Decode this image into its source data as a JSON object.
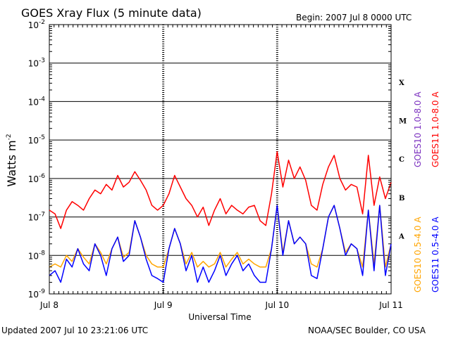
{
  "header": {
    "title": "GOES Xray Flux (5 minute data)",
    "begin": "Begin:  2007 Jul 8 0000 UTC"
  },
  "footer": {
    "updated": "Updated 2007 Jul 10 23:21:06 UTC",
    "credit": "NOAA/SEC Boulder, CO USA"
  },
  "colors": {
    "goes10_long": "#7a2fbf",
    "goes11_long": "#ff0000",
    "goes10_short": "#ffa500",
    "goes11_short": "#0000ff"
  },
  "chart_data": {
    "type": "line",
    "title": "GOES Xray Flux (5 minute data)",
    "xlabel": "Universal Time",
    "ylabel": "Watts m",
    "ylabel_exponent": "-2",
    "y_scale": "log",
    "ylim": [
      1e-09,
      0.01
    ],
    "xlim": [
      0,
      3
    ],
    "x_ticks": [
      {
        "value": 0,
        "label": "Jul 8"
      },
      {
        "value": 1,
        "label": "Jul 9"
      },
      {
        "value": 2,
        "label": "Jul 10"
      },
      {
        "value": 3,
        "label": "Jul 11"
      }
    ],
    "y_ticks": [
      {
        "value": 0.01,
        "base": "10",
        "exp": "-2"
      },
      {
        "value": 0.001,
        "base": "10",
        "exp": "-3"
      },
      {
        "value": 0.0001,
        "base": "10",
        "exp": "-4"
      },
      {
        "value": 1e-05,
        "base": "10",
        "exp": "-5"
      },
      {
        "value": 1e-06,
        "base": "10",
        "exp": "-6"
      },
      {
        "value": 1e-07,
        "base": "10",
        "exp": "-7"
      },
      {
        "value": 1e-08,
        "base": "10",
        "exp": "-8"
      },
      {
        "value": 1e-09,
        "base": "10",
        "exp": "-9"
      }
    ],
    "flare_classes": [
      {
        "label": "X",
        "value": 0.00032
      },
      {
        "label": "M",
        "value": 3.2e-05
      },
      {
        "label": "C",
        "value": 3.2e-06
      },
      {
        "label": "B",
        "value": 3.2e-07
      },
      {
        "label": "A",
        "value": 3.2e-08
      }
    ],
    "legend": [
      {
        "name": "GOES10 0.5-4.0 A",
        "color": "#ffa500"
      },
      {
        "name": "GOES10 1.0-8.0 A",
        "color": "#7a2fbf"
      },
      {
        "name": "GOES11 0.5-4.0 A",
        "color": "#0000ff"
      },
      {
        "name": "GOES11 1.0-8.0 A",
        "color": "#ff0000"
      }
    ],
    "series": [
      {
        "name": "GOES11 1.0-8.0 A",
        "color": "#ff0000",
        "x": [
          0.0,
          0.05,
          0.1,
          0.15,
          0.2,
          0.25,
          0.3,
          0.35,
          0.4,
          0.45,
          0.5,
          0.55,
          0.6,
          0.65,
          0.7,
          0.75,
          0.8,
          0.85,
          0.9,
          0.95,
          1.0,
          1.05,
          1.1,
          1.15,
          1.2,
          1.25,
          1.3,
          1.35,
          1.4,
          1.45,
          1.5,
          1.55,
          1.6,
          1.65,
          1.7,
          1.75,
          1.8,
          1.85,
          1.9,
          1.95,
          2.0,
          2.05,
          2.1,
          2.15,
          2.2,
          2.25,
          2.3,
          2.35,
          2.4,
          2.45,
          2.5,
          2.55,
          2.6,
          2.65,
          2.7,
          2.75,
          2.8,
          2.85,
          2.9,
          2.95,
          3.0
        ],
        "values": [
          1.5e-07,
          1.2e-07,
          5e-08,
          1.5e-07,
          2.5e-07,
          2e-07,
          1.5e-07,
          3e-07,
          5e-07,
          4e-07,
          7e-07,
          5e-07,
          1.2e-06,
          6e-07,
          8e-07,
          1.5e-06,
          9e-07,
          5e-07,
          2e-07,
          1.5e-07,
          2e-07,
          4e-07,
          1.2e-06,
          6e-07,
          3e-07,
          2e-07,
          1e-07,
          1.8e-07,
          6e-08,
          1.5e-07,
          3e-07,
          1.2e-07,
          2e-07,
          1.5e-07,
          1.2e-07,
          1.8e-07,
          2e-07,
          8e-08,
          6e-08,
          4e-07,
          5e-06,
          6e-07,
          3e-06,
          1e-06,
          2e-06,
          9e-07,
          2e-07,
          1.5e-07,
          7e-07,
          2e-06,
          4e-06,
          1e-06,
          5e-07,
          7e-07,
          6e-07,
          1.2e-07,
          4e-06,
          2e-07,
          1.1e-06,
          3e-07,
          8e-07
        ]
      },
      {
        "name": "GOES11 0.5-4.0 A",
        "color": "#0000ff",
        "x": [
          0.0,
          0.05,
          0.1,
          0.15,
          0.2,
          0.25,
          0.3,
          0.35,
          0.4,
          0.45,
          0.5,
          0.55,
          0.6,
          0.65,
          0.7,
          0.75,
          0.8,
          0.85,
          0.9,
          0.95,
          1.0,
          1.05,
          1.1,
          1.15,
          1.2,
          1.25,
          1.3,
          1.35,
          1.4,
          1.45,
          1.5,
          1.55,
          1.6,
          1.65,
          1.7,
          1.75,
          1.8,
          1.85,
          1.9,
          1.95,
          2.0,
          2.05,
          2.1,
          2.15,
          2.2,
          2.25,
          2.3,
          2.35,
          2.4,
          2.45,
          2.5,
          2.55,
          2.6,
          2.65,
          2.7,
          2.75,
          2.8,
          2.85,
          2.9,
          2.95,
          3.0
        ],
        "values": [
          3e-09,
          4e-09,
          2e-09,
          8e-09,
          5e-09,
          1.5e-08,
          6e-09,
          4e-09,
          2e-08,
          1e-08,
          3e-09,
          1.5e-08,
          3e-08,
          7e-09,
          1e-08,
          8e-08,
          3e-08,
          8e-09,
          3e-09,
          2.5e-09,
          2e-09,
          1.5e-08,
          5e-08,
          2e-08,
          4e-09,
          1e-08,
          2e-09,
          5e-09,
          2e-09,
          4e-09,
          1e-08,
          3e-09,
          6e-09,
          1e-08,
          4e-09,
          6e-09,
          3e-09,
          2e-09,
          2e-09,
          1.5e-08,
          2e-07,
          1e-08,
          8e-08,
          2e-08,
          3e-08,
          2e-08,
          3e-09,
          2.5e-09,
          1.5e-08,
          1e-07,
          2e-07,
          5e-08,
          1e-08,
          2e-08,
          1.5e-08,
          3e-09,
          1.5e-07,
          4e-09,
          2e-07,
          3e-09,
          2e-08
        ]
      },
      {
        "name": "GOES10 0.5-4.0 A",
        "color": "#ffa500",
        "x": [
          0.0,
          0.05,
          0.1,
          0.15,
          0.2,
          0.25,
          0.3,
          0.35,
          0.4,
          0.45,
          0.5,
          0.55,
          0.6,
          0.65,
          0.7,
          0.75,
          0.8,
          0.85,
          0.9,
          0.95,
          1.0,
          1.05,
          1.1,
          1.15,
          1.2,
          1.25,
          1.3,
          1.35,
          1.4,
          1.45,
          1.5,
          1.55,
          1.6,
          1.65,
          1.7,
          1.75,
          1.8,
          1.85,
          1.9,
          1.95,
          2.0,
          2.05,
          2.1,
          2.15,
          2.2,
          2.25,
          2.3,
          2.35,
          2.4,
          2.45,
          2.5,
          2.55,
          2.6,
          2.65,
          2.7,
          2.75,
          2.8,
          2.85,
          2.9,
          2.95,
          3.0
        ],
        "values": [
          5e-09,
          6e-09,
          5e-09,
          1e-08,
          7e-09,
          1.5e-08,
          9e-09,
          6e-09,
          2e-08,
          1.2e-08,
          6e-09,
          1.5e-08,
          3e-08,
          9e-09,
          1.2e-08,
          8e-08,
          3e-08,
          1e-08,
          6e-09,
          5e-09,
          5e-09,
          1.5e-08,
          5e-08,
          2e-08,
          6e-09,
          1.2e-08,
          5e-09,
          7e-09,
          5e-09,
          6e-09,
          1.2e-08,
          5e-09,
          8e-09,
          1.2e-08,
          6e-09,
          8e-09,
          6e-09,
          5e-09,
          5e-09,
          1.5e-08,
          2e-07,
          1.2e-08,
          8e-08,
          2e-08,
          3e-08,
          2e-08,
          6e-09,
          5e-09,
          1.5e-08,
          1e-07,
          2e-07,
          5e-08,
          1.2e-08,
          2e-08,
          1.5e-08,
          5e-09,
          1.5e-07,
          6e-09,
          2e-07,
          5e-09,
          2e-08
        ]
      }
    ]
  }
}
